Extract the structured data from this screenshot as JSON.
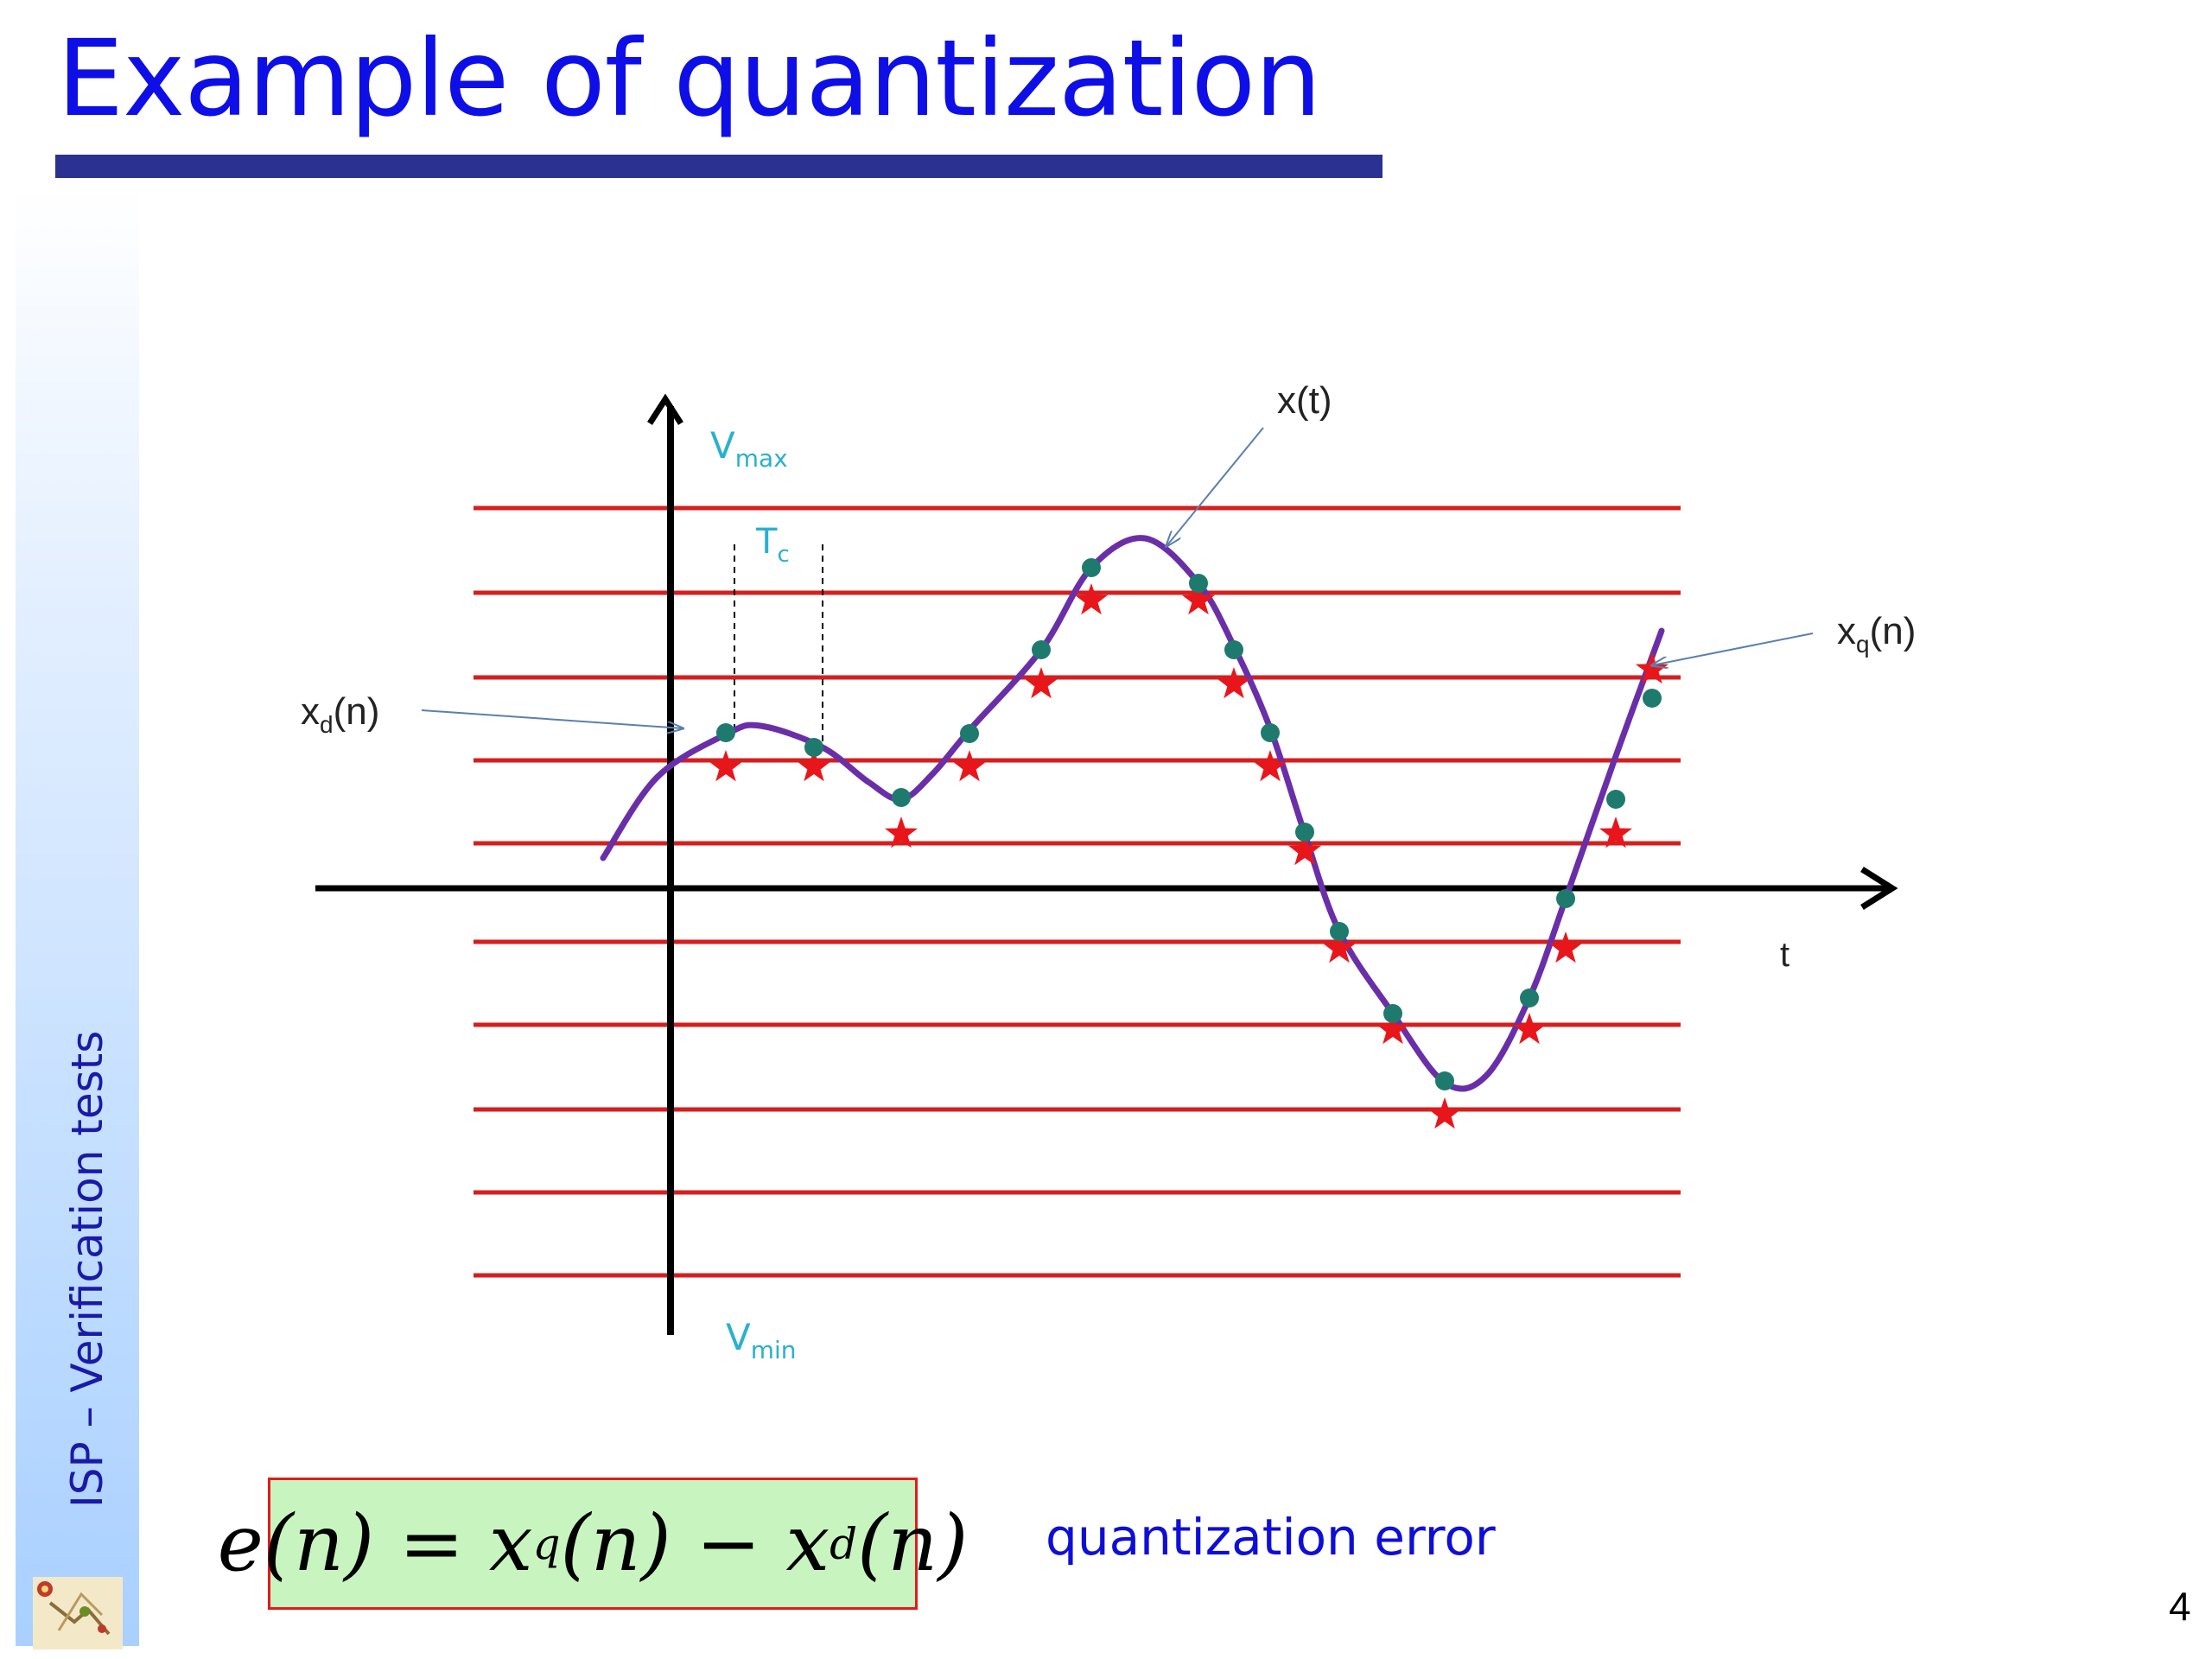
{
  "slide": {
    "title": "Example of quantization",
    "side_label": "ISP – Verification tests",
    "page_number": "4"
  },
  "diagram": {
    "labels": {
      "vmax": "V",
      "vmax_sub": "max",
      "vmin": "V",
      "vmin_sub": "min",
      "tc": "T",
      "tc_sub": "c",
      "xt": "x(t)",
      "xd_pre": "x",
      "xd_sub": "d",
      "xd_post": "(n)",
      "xq_pre": "x",
      "xq_sub": "q",
      "xq_post": "(n)",
      "t_axis": "t"
    },
    "quantization_levels": 10,
    "colors": {
      "levels": "#d51f1f",
      "signal": "#6a2fa8",
      "samples": "#1f7a6e",
      "stars": "#e8161b",
      "axes": "#000000",
      "annotations": "#2ab0d0"
    }
  },
  "formula": {
    "lhs": "e(n)",
    "equals": " = ",
    "xq": "x",
    "xq_sub": "q",
    "xq_arg": "(n)",
    "minus": " − ",
    "xd": "x",
    "xd_sub": "d",
    "xd_arg": "(n)"
  },
  "caption": "quantization error"
}
